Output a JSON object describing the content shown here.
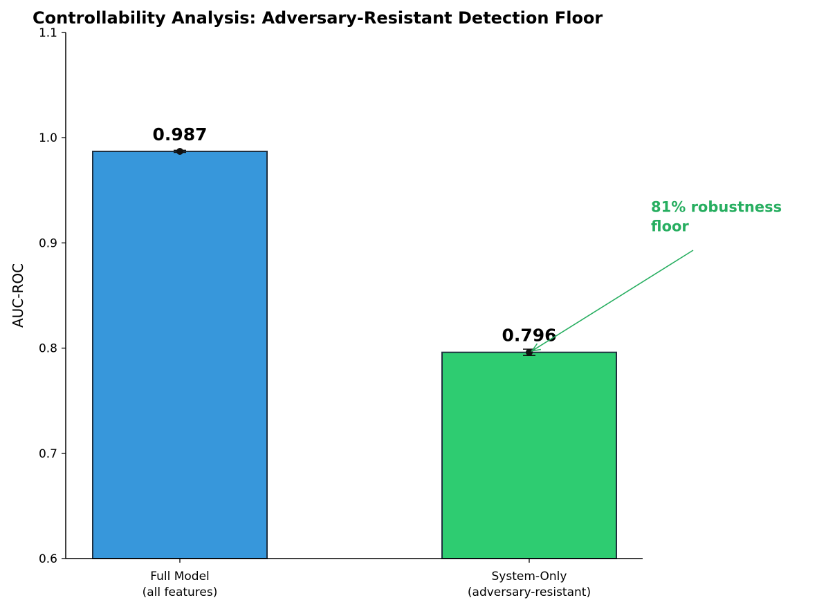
{
  "chart_data": {
    "type": "bar",
    "title": "Controllability Analysis: Adversary-Resistant Detection Floor",
    "xlabel": "",
    "ylabel": "AUC-ROC",
    "ylim": [
      0.6,
      1.1
    ],
    "yticks": [
      "0.6",
      "0.7",
      "0.8",
      "0.9",
      "1.0",
      "1.1"
    ],
    "categories": [
      [
        "Full Model",
        "(all features)"
      ],
      [
        "System-Only",
        "(adversary-resistant)"
      ]
    ],
    "values": [
      0.987,
      0.796
    ],
    "value_labels": [
      "0.987",
      "0.796"
    ],
    "errors": [
      0.001,
      0.003
    ],
    "colors": [
      "#3797db",
      "#2ecc71"
    ],
    "grid": false,
    "annotation": {
      "lines": [
        "81% robustness",
        "floor"
      ],
      "color": "#27ae60",
      "points_to": {
        "category_index": 1,
        "value": 0.796
      },
      "text_anchor_value": 0.915
    }
  }
}
